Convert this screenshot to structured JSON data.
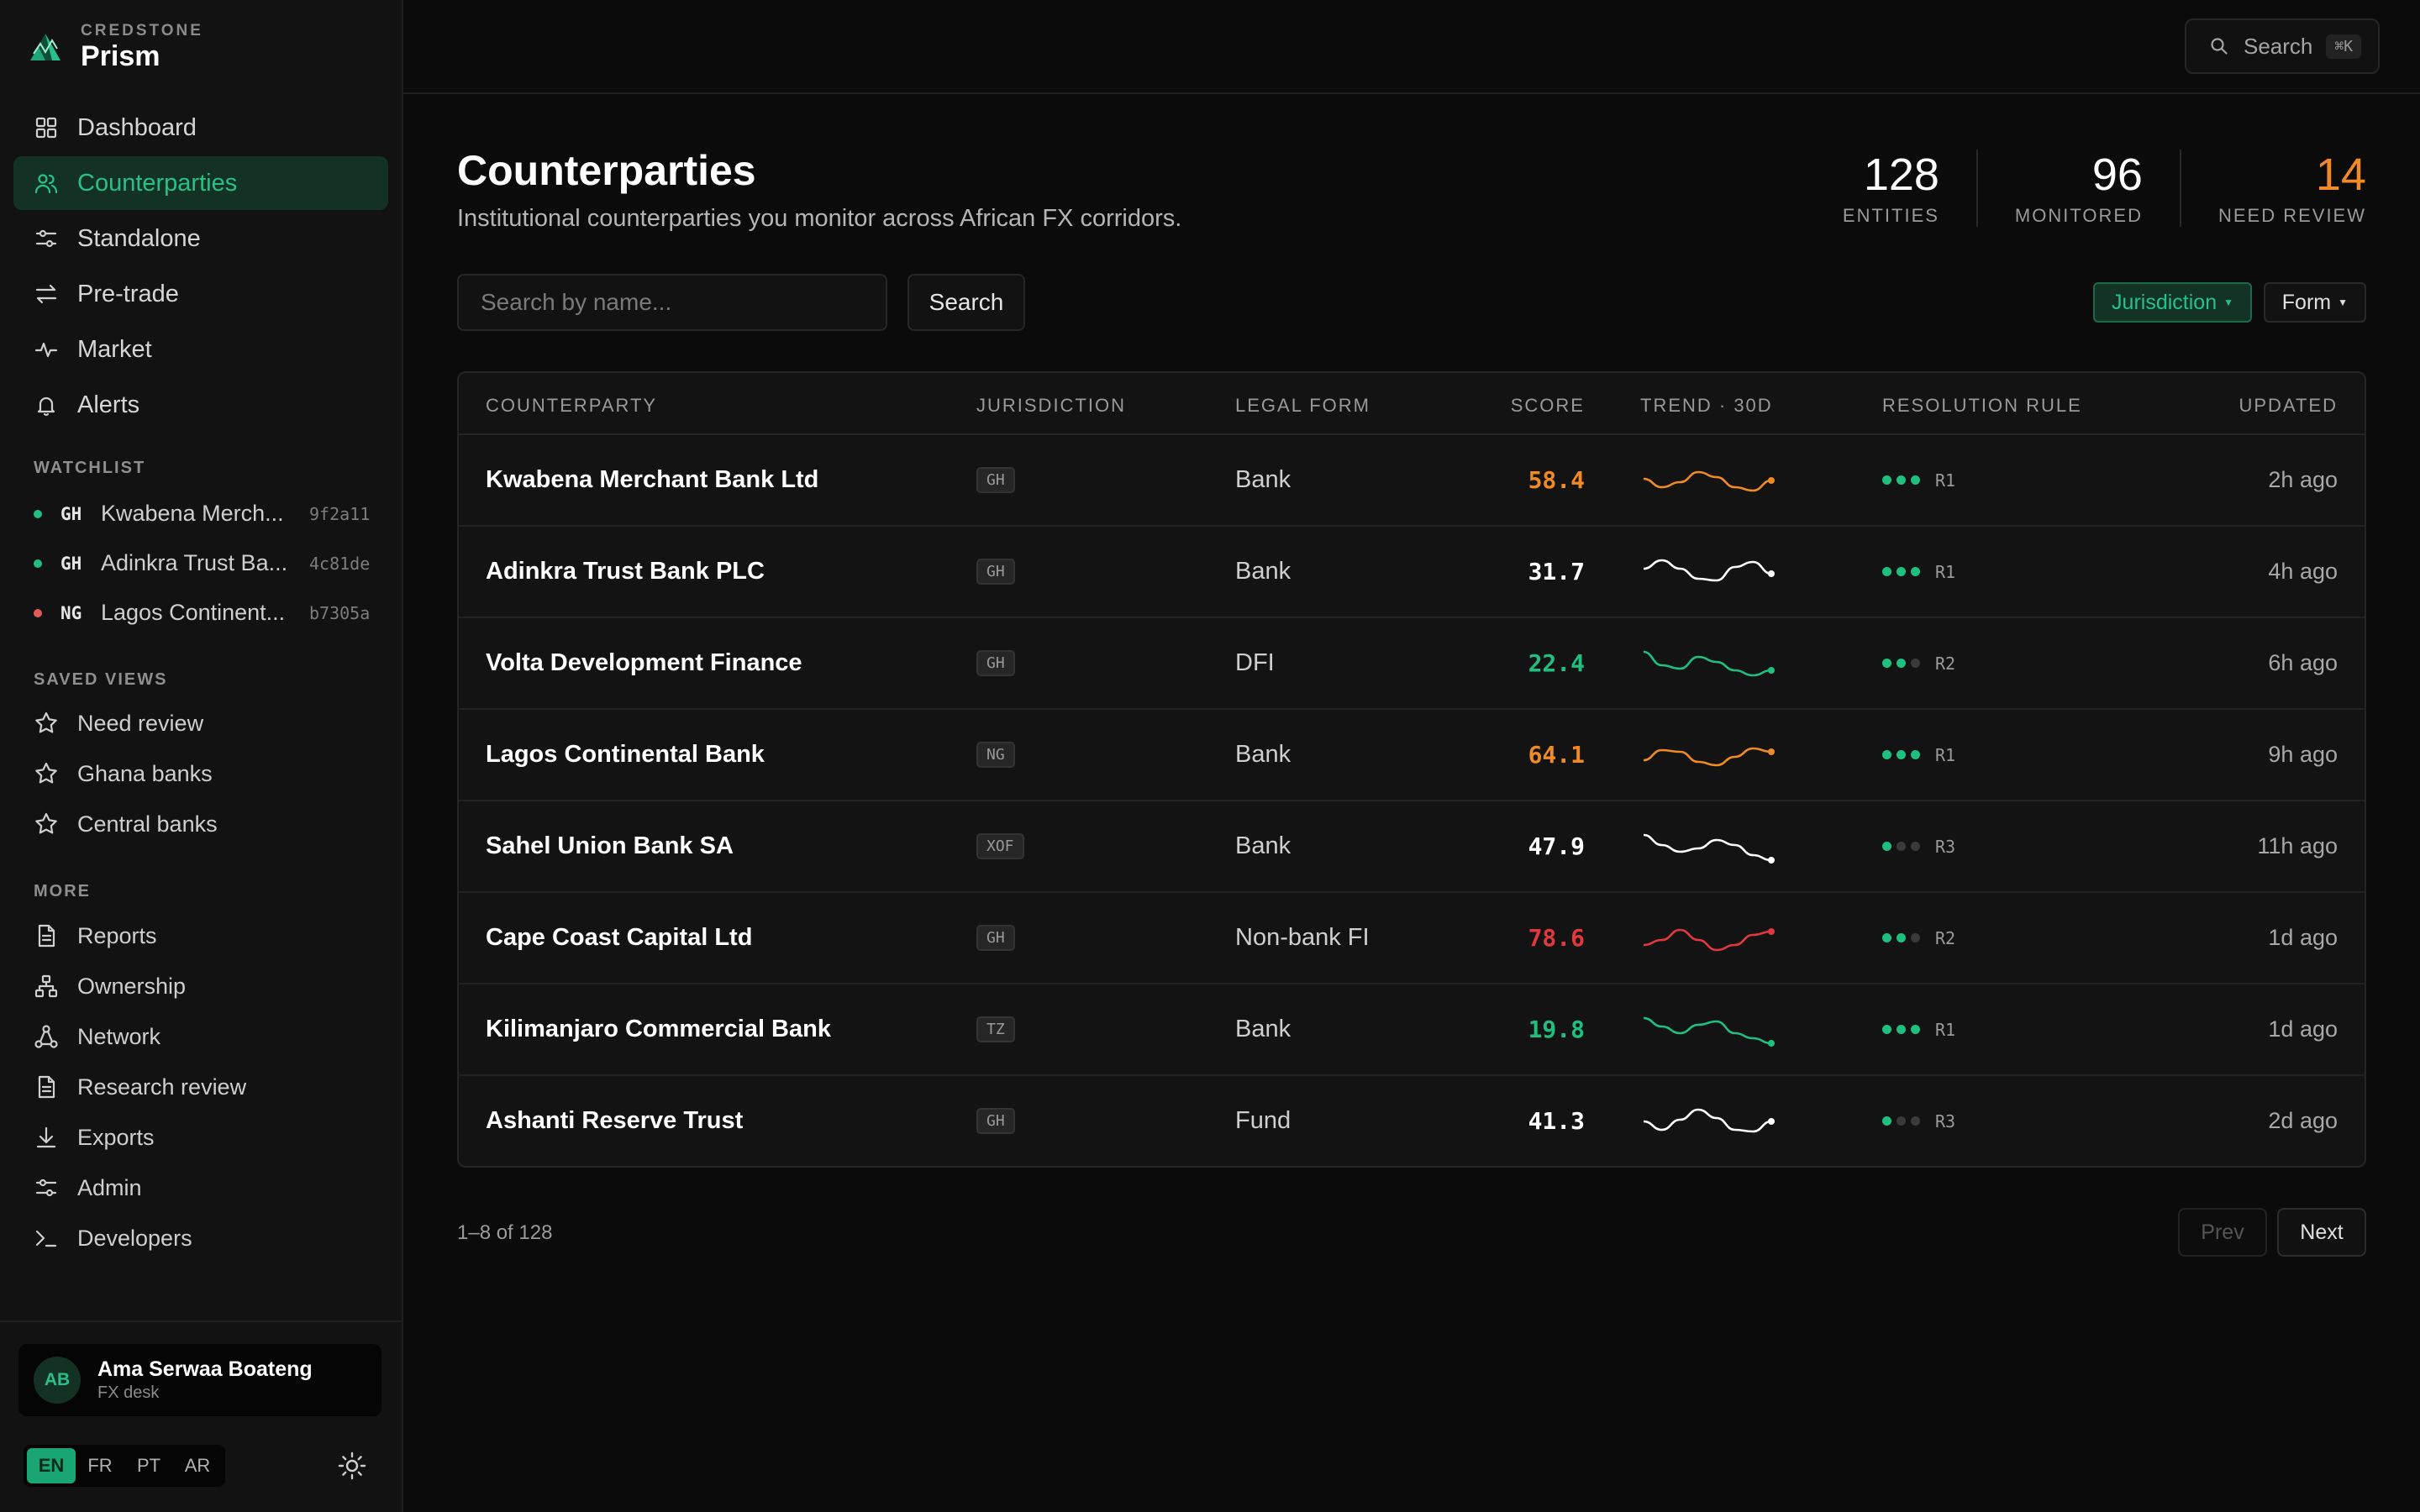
{
  "brand": {
    "small": "CREDSTONE",
    "name": "Prism"
  },
  "nav": [
    {
      "label": "Dashboard",
      "icon": "grid-icon"
    },
    {
      "label": "Counterparties",
      "icon": "users-icon",
      "active": true
    },
    {
      "label": "Standalone",
      "icon": "sliders-icon"
    },
    {
      "label": "Pre-trade",
      "icon": "arrows-icon"
    },
    {
      "label": "Market",
      "icon": "pulse-icon"
    },
    {
      "label": "Alerts",
      "icon": "bell-icon"
    }
  ],
  "watchlist": {
    "title": "WATCHLIST",
    "items": [
      {
        "code": "GH",
        "name": "Kwabena Merch...",
        "hash": "9f2a11",
        "status_color": "#1fc07f"
      },
      {
        "code": "GH",
        "name": "Adinkra Trust Ba...",
        "hash": "4c81de",
        "status_color": "#1fc07f"
      },
      {
        "code": "NG",
        "name": "Lagos Continent...",
        "hash": "b7305a",
        "status_color": "#e05a5a"
      }
    ]
  },
  "saved_views": {
    "title": "SAVED VIEWS",
    "items": [
      "Need review",
      "Ghana banks",
      "Central banks"
    ]
  },
  "more": {
    "title": "MORE",
    "items": [
      {
        "label": "Reports",
        "icon": "document-icon"
      },
      {
        "label": "Ownership",
        "icon": "hierarchy-icon"
      },
      {
        "label": "Network",
        "icon": "network-icon"
      },
      {
        "label": "Research review",
        "icon": "document-icon"
      },
      {
        "label": "Exports",
        "icon": "download-icon"
      },
      {
        "label": "Admin",
        "icon": "sliders-icon"
      },
      {
        "label": "Developers",
        "icon": "terminal-icon"
      }
    ]
  },
  "user": {
    "initials": "AB",
    "name": "Ama Serwaa Boateng",
    "role": "FX desk"
  },
  "languages": [
    "EN",
    "FR",
    "PT",
    "AR"
  ],
  "topbar": {
    "search_label": "Search",
    "shortcut": "⌘K"
  },
  "page": {
    "title": "Counterparties",
    "subtitle": "Institutional counterparties you monitor across African FX corridors."
  },
  "stats": [
    {
      "value": "128",
      "label": "ENTITIES"
    },
    {
      "value": "96",
      "label": "MONITORED"
    },
    {
      "value": "14",
      "label": "NEED REVIEW",
      "color": "#f08a24"
    }
  ],
  "search": {
    "placeholder": "Search by name...",
    "button": "Search"
  },
  "filters": {
    "jurisdiction": "Jurisdiction",
    "form": "Form"
  },
  "table": {
    "headers": [
      "COUNTERPARTY",
      "JURISDICTION",
      "LEGAL FORM",
      "SCORE",
      "TREND · 30D",
      "RESOLUTION RULE",
      "UPDATED"
    ],
    "rows": [
      {
        "name": "Kwabena Merchant Bank Ltd",
        "jur": "GH",
        "form": "Bank",
        "score": "58.4",
        "tone": "orange",
        "trend": [
          0.55,
          0.3,
          0.45,
          0.75,
          0.6,
          0.3,
          0.2,
          0.5
        ],
        "rule": "R1",
        "rule_level": 3,
        "updated": "2h ago"
      },
      {
        "name": "Adinkra Trust Bank PLC",
        "jur": "GH",
        "form": "Bank",
        "score": "31.7",
        "tone": "white",
        "trend": [
          0.6,
          0.85,
          0.6,
          0.3,
          0.25,
          0.65,
          0.8,
          0.45
        ],
        "rule": "R1",
        "rule_level": 3,
        "updated": "4h ago"
      },
      {
        "name": "Volta Development Finance",
        "jur": "GH",
        "form": "DFI",
        "score": "22.4",
        "tone": "green",
        "trend": [
          0.85,
          0.45,
          0.35,
          0.7,
          0.55,
          0.3,
          0.15,
          0.3
        ],
        "rule": "R2",
        "rule_level": 2,
        "updated": "6h ago"
      },
      {
        "name": "Lagos Continental Bank",
        "jur": "NG",
        "form": "Bank",
        "score": "64.1",
        "tone": "orange",
        "trend": [
          0.35,
          0.65,
          0.6,
          0.3,
          0.2,
          0.45,
          0.7,
          0.6
        ],
        "rule": "R1",
        "rule_level": 3,
        "updated": "9h ago"
      },
      {
        "name": "Sahel Union Bank SA",
        "jur": "XOF",
        "form": "Bank",
        "score": "47.9",
        "tone": "white",
        "trend": [
          0.85,
          0.55,
          0.35,
          0.45,
          0.7,
          0.55,
          0.25,
          0.1
        ],
        "rule": "R3",
        "rule_level": 1,
        "updated": "11h ago"
      },
      {
        "name": "Cape Coast Capital Ltd",
        "jur": "GH",
        "form": "Non-bank FI",
        "score": "78.6",
        "tone": "red",
        "trend": [
          0.3,
          0.45,
          0.75,
          0.45,
          0.15,
          0.3,
          0.6,
          0.7
        ],
        "rule": "R2",
        "rule_level": 2,
        "updated": "1d ago"
      },
      {
        "name": "Kilimanjaro Commercial Bank",
        "jur": "TZ",
        "form": "Bank",
        "score": "19.8",
        "tone": "green",
        "trend": [
          0.85,
          0.6,
          0.4,
          0.65,
          0.75,
          0.4,
          0.25,
          0.1
        ],
        "rule": "R1",
        "rule_level": 3,
        "updated": "1d ago"
      },
      {
        "name": "Ashanti Reserve Trust",
        "jur": "GH",
        "form": "Fund",
        "score": "41.3",
        "tone": "white",
        "trend": [
          0.5,
          0.25,
          0.55,
          0.85,
          0.6,
          0.25,
          0.2,
          0.5
        ],
        "rule": "R3",
        "rule_level": 1,
        "updated": "2d ago"
      }
    ]
  },
  "pagination": {
    "info": "1–8 of 128",
    "prev": "Prev",
    "next": "Next"
  },
  "colors": {
    "accent": "#27c08a",
    "orange": "#f08a24",
    "red": "#e0383c",
    "green": "#1fc07f",
    "white": "#ffffff"
  }
}
